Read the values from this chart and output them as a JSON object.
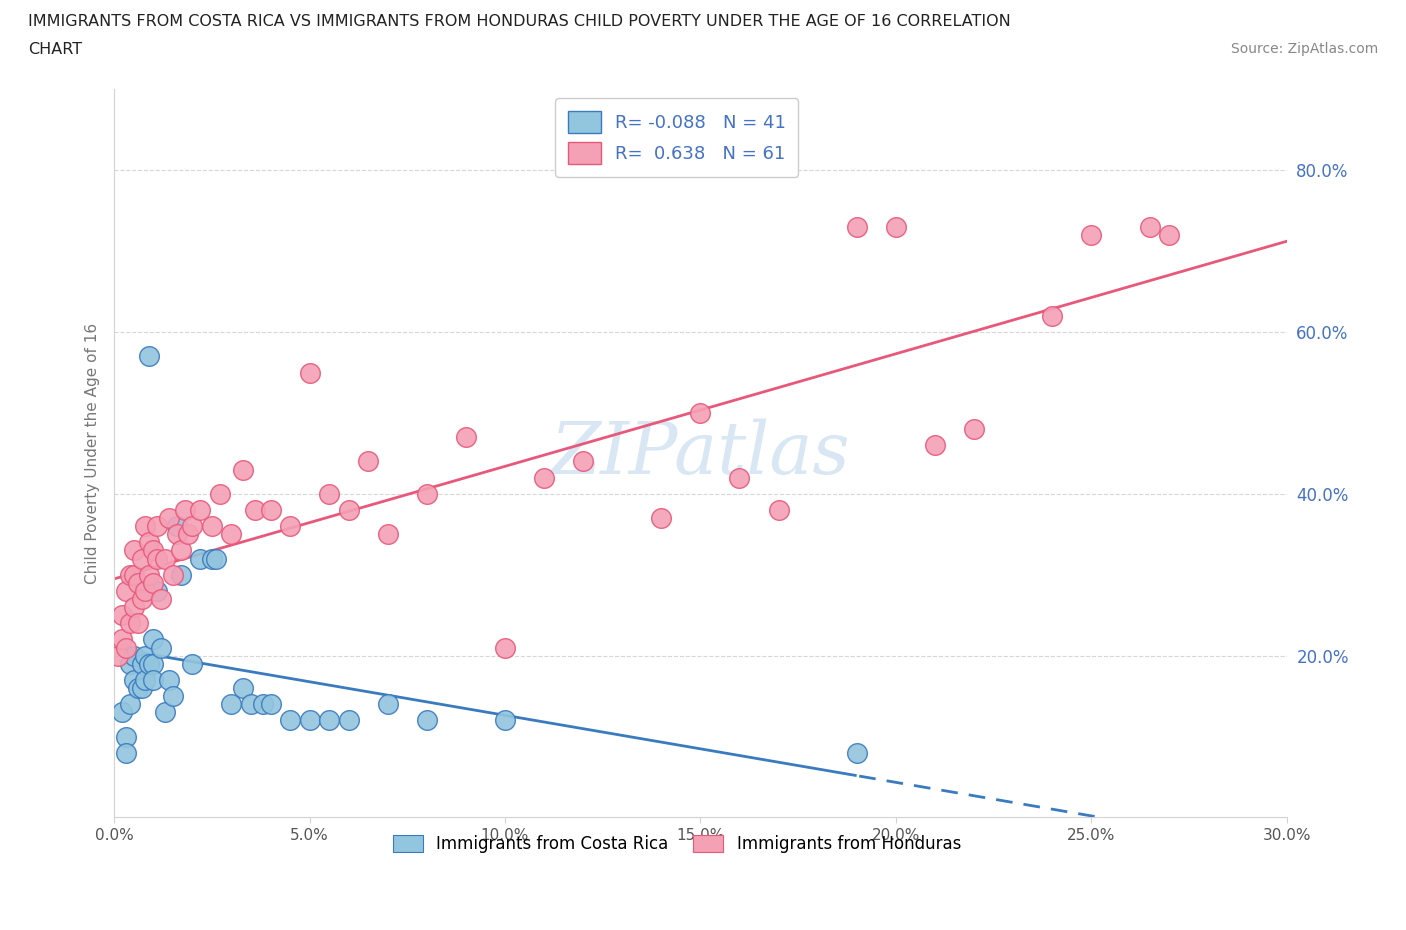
{
  "title_line1": "IMMIGRANTS FROM COSTA RICA VS IMMIGRANTS FROM HONDURAS CHILD POVERTY UNDER THE AGE OF 16 CORRELATION",
  "title_line2": "CHART",
  "source_text": "Source: ZipAtlas.com",
  "ylabel": "Child Poverty Under the Age of 16",
  "xlim": [
    0.0,
    0.3
  ],
  "ylim": [
    0.0,
    0.9
  ],
  "xtick_labels": [
    "0.0%",
    "5.0%",
    "10.0%",
    "15.0%",
    "20.0%",
    "25.0%",
    "30.0%"
  ],
  "xtick_values": [
    0.0,
    0.05,
    0.1,
    0.15,
    0.2,
    0.25,
    0.3
  ],
  "ytick_labels": [
    "20.0%",
    "40.0%",
    "60.0%",
    "80.0%"
  ],
  "ytick_values": [
    0.2,
    0.4,
    0.6,
    0.8
  ],
  "costa_rica_color": "#92c5de",
  "honduras_color": "#f4a0b5",
  "costa_rica_line_color": "#3a7abf",
  "honduras_line_color": "#e8587a",
  "legend_R_costa_rica": "-0.088",
  "legend_N_costa_rica": "41",
  "legend_R_honduras": "0.638",
  "legend_N_honduras": "61",
  "watermark_text": "ZIPatlas",
  "costa_rica_x": [
    0.002,
    0.003,
    0.003,
    0.004,
    0.004,
    0.005,
    0.005,
    0.006,
    0.007,
    0.007,
    0.008,
    0.008,
    0.009,
    0.009,
    0.01,
    0.01,
    0.01,
    0.011,
    0.012,
    0.013,
    0.014,
    0.015,
    0.016,
    0.017,
    0.02,
    0.022,
    0.025,
    0.026,
    0.03,
    0.033,
    0.035,
    0.038,
    0.04,
    0.045,
    0.05,
    0.055,
    0.06,
    0.07,
    0.08,
    0.1,
    0.19
  ],
  "costa_rica_y": [
    0.13,
    0.1,
    0.08,
    0.19,
    0.14,
    0.2,
    0.17,
    0.16,
    0.19,
    0.16,
    0.2,
    0.17,
    0.57,
    0.19,
    0.22,
    0.19,
    0.17,
    0.28,
    0.21,
    0.13,
    0.17,
    0.15,
    0.36,
    0.3,
    0.19,
    0.32,
    0.32,
    0.32,
    0.14,
    0.16,
    0.14,
    0.14,
    0.14,
    0.12,
    0.12,
    0.12,
    0.12,
    0.14,
    0.12,
    0.12,
    0.08
  ],
  "honduras_x": [
    0.001,
    0.002,
    0.002,
    0.003,
    0.003,
    0.004,
    0.004,
    0.005,
    0.005,
    0.005,
    0.006,
    0.006,
    0.007,
    0.007,
    0.008,
    0.008,
    0.009,
    0.009,
    0.01,
    0.01,
    0.011,
    0.011,
    0.012,
    0.013,
    0.014,
    0.015,
    0.016,
    0.017,
    0.018,
    0.019,
    0.02,
    0.022,
    0.025,
    0.027,
    0.03,
    0.033,
    0.036,
    0.04,
    0.045,
    0.05,
    0.055,
    0.06,
    0.065,
    0.07,
    0.08,
    0.09,
    0.1,
    0.11,
    0.12,
    0.14,
    0.15,
    0.16,
    0.17,
    0.19,
    0.2,
    0.21,
    0.22,
    0.24,
    0.25,
    0.265,
    0.27
  ],
  "honduras_y": [
    0.2,
    0.22,
    0.25,
    0.21,
    0.28,
    0.24,
    0.3,
    0.26,
    0.3,
    0.33,
    0.24,
    0.29,
    0.27,
    0.32,
    0.28,
    0.36,
    0.3,
    0.34,
    0.29,
    0.33,
    0.32,
    0.36,
    0.27,
    0.32,
    0.37,
    0.3,
    0.35,
    0.33,
    0.38,
    0.35,
    0.36,
    0.38,
    0.36,
    0.4,
    0.35,
    0.43,
    0.38,
    0.38,
    0.36,
    0.55,
    0.4,
    0.38,
    0.44,
    0.35,
    0.4,
    0.47,
    0.21,
    0.42,
    0.44,
    0.37,
    0.5,
    0.42,
    0.38,
    0.73,
    0.73,
    0.46,
    0.48,
    0.62,
    0.72,
    0.73,
    0.72
  ]
}
